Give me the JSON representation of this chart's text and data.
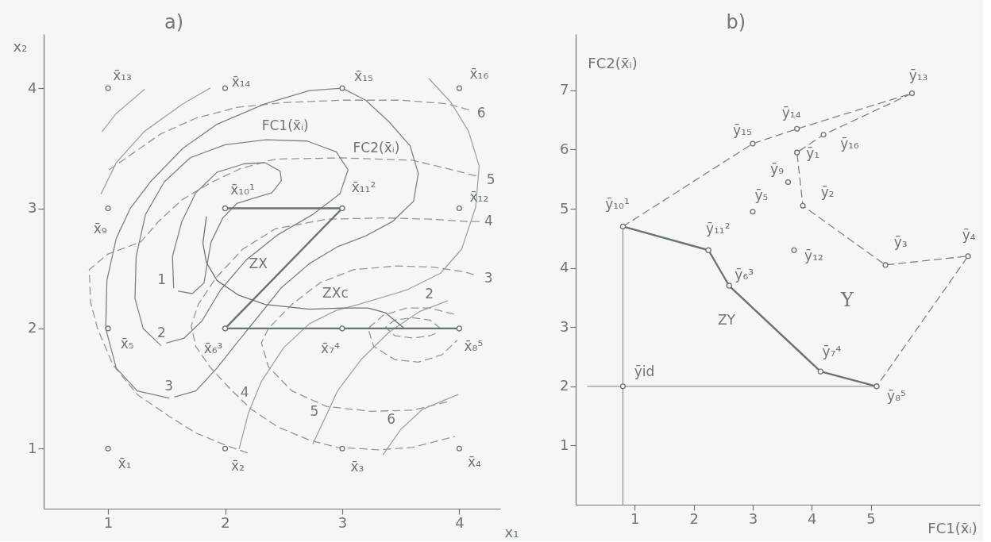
{
  "chart_data": [
    {
      "type": "line",
      "title": "a)",
      "xlabel": "x₁",
      "ylabel": "x₂",
      "xlim": [
        0.45,
        4.35
      ],
      "ylim": [
        0.5,
        4.45
      ],
      "xticks": [
        1,
        2,
        3,
        4
      ],
      "yticks": [
        1,
        2,
        3,
        4
      ],
      "series": [
        {
          "line_style": "dashed",
          "marker": "none",
          "color": "#8f9993",
          "x": [
            3.95,
            3.75,
            3.55,
            3.35,
            3.22,
            3.27,
            3.45,
            3.65,
            3.85,
            3.98
          ],
          "values": [
            2.12,
            2.17,
            2.17,
            2.11,
            2.0,
            1.85,
            1.74,
            1.72,
            1.78,
            1.9
          ]
        },
        {
          "line_style": "dashed",
          "marker": "none",
          "color": "#8f9993",
          "x": [
            3.84,
            3.75,
            3.6,
            3.45,
            3.37,
            3.45,
            3.6,
            3.75,
            3.83
          ],
          "values": [
            2.0,
            2.07,
            2.09,
            2.07,
            2.01,
            1.94,
            1.92,
            1.94,
            1.97
          ]
        },
        {
          "line_style": "dashed",
          "marker": "none",
          "color": "#8f9993",
          "x": [
            4.12,
            4.05,
            3.78,
            3.46,
            3.1,
            2.81,
            2.57,
            2.37,
            2.31,
            2.37,
            2.57,
            2.87,
            3.25,
            3.6,
            3.9
          ],
          "values": [
            2.45,
            2.47,
            2.51,
            2.52,
            2.49,
            2.38,
            2.2,
            2.0,
            1.88,
            1.68,
            1.48,
            1.35,
            1.31,
            1.32,
            1.39
          ]
        },
        {
          "line_style": "dashed",
          "marker": "none",
          "color": "#8f9993",
          "x": [
            4.17,
            4.08,
            3.75,
            3.37,
            2.87,
            2.43,
            2.15,
            1.92,
            1.77,
            1.71,
            1.75,
            1.87,
            2.04,
            2.22,
            2.45,
            2.72,
            2.96,
            3.31,
            3.6,
            3.96
          ],
          "values": [
            2.89,
            2.89,
            2.91,
            2.92,
            2.91,
            2.83,
            2.66,
            2.42,
            2.2,
            2.02,
            1.85,
            1.68,
            1.5,
            1.33,
            1.18,
            1.07,
            1.01,
            0.99,
            1.01,
            1.1
          ]
        },
        {
          "line_style": "dashed",
          "marker": "none",
          "color": "#8f9993",
          "x": [
            4.14,
            3.9,
            3.6,
            3.0,
            2.43,
            2.13,
            1.87,
            1.63,
            1.43,
            1.28,
            1.0,
            0.84,
            0.85,
            0.91,
            1.04,
            1.25,
            1.52,
            1.75,
            2.0,
            2.2
          ],
          "values": [
            3.27,
            3.33,
            3.4,
            3.42,
            3.41,
            3.33,
            3.21,
            3.07,
            2.89,
            2.72,
            2.62,
            2.49,
            2.22,
            2.0,
            1.7,
            1.45,
            1.27,
            1.13,
            1.03,
            0.96
          ]
        },
        {
          "line_style": "dashed",
          "marker": "none",
          "color": "#8f9993",
          "x": [
            4.08,
            3.9,
            3.5,
            3.0,
            2.5,
            2.1,
            1.75,
            1.45,
            1.2,
            0.98
          ],
          "values": [
            3.82,
            3.87,
            3.9,
            3.9,
            3.88,
            3.84,
            3.75,
            3.62,
            3.45,
            3.3
          ]
        },
        {
          "line_style": "solid",
          "marker": "none",
          "color": "#7b867f",
          "x": [
            1.56,
            1.55,
            1.63,
            1.75,
            1.93,
            2.16,
            2.34,
            2.47,
            2.48,
            2.4,
            2.23,
            2.1,
            1.98,
            1.88,
            1.84,
            1.82,
            1.72,
            1.6
          ],
          "values": [
            2.34,
            2.6,
            2.89,
            3.13,
            3.3,
            3.37,
            3.38,
            3.31,
            3.23,
            3.13,
            3.08,
            3.04,
            2.92,
            2.72,
            2.5,
            2.38,
            2.29,
            2.31
          ]
        },
        {
          "line_style": "solid",
          "marker": "none",
          "color": "#7b867f",
          "x": [
            1.45,
            1.3,
            1.23,
            1.24,
            1.32,
            1.48,
            1.7,
            2.0,
            2.35,
            2.7,
            2.95,
            3.05,
            2.98,
            2.75,
            2.45,
            2.18,
            1.96,
            1.8,
            1.65,
            1.5
          ],
          "values": [
            1.86,
            2.0,
            2.25,
            2.6,
            2.95,
            3.22,
            3.42,
            3.53,
            3.57,
            3.56,
            3.47,
            3.32,
            3.12,
            2.95,
            2.78,
            2.57,
            2.32,
            2.06,
            1.92,
            1.88
          ]
        },
        {
          "line_style": "solid",
          "marker": "none",
          "color": "#7b867f",
          "x": [
            1.52,
            1.25,
            1.07,
            0.98,
            0.99,
            1.07,
            1.19,
            1.37,
            1.64,
            1.93,
            2.34,
            2.72,
            3.0,
            3.2,
            3.4,
            3.58,
            3.65,
            3.61,
            3.43,
            3.2,
            2.96,
            2.72,
            2.48,
            2.3,
            2.1,
            1.93,
            1.75,
            1.57
          ],
          "values": [
            1.42,
            1.48,
            1.67,
            2.0,
            2.4,
            2.75,
            3.0,
            3.23,
            3.5,
            3.7,
            3.87,
            3.98,
            4.0,
            3.9,
            3.72,
            3.52,
            3.29,
            3.06,
            2.89,
            2.77,
            2.68,
            2.54,
            2.34,
            2.12,
            1.88,
            1.67,
            1.48,
            1.43
          ]
        },
        {
          "line_style": "solid",
          "marker": "none",
          "color": "#9ca59f",
          "x": [
            2.12,
            2.2,
            2.31,
            2.5,
            2.72,
            2.95,
            3.14,
            3.55,
            3.84,
            4.02,
            4.14,
            4.17,
            4.08,
            3.93,
            3.74
          ],
          "values": [
            1.0,
            1.3,
            1.56,
            1.84,
            2.04,
            2.15,
            2.2,
            2.32,
            2.46,
            2.66,
            3.01,
            3.35,
            3.64,
            3.88,
            4.08
          ]
        },
        {
          "line_style": "solid",
          "marker": "none",
          "color": "#9ca59f",
          "x": [
            2.75,
            2.87,
            2.96,
            3.16,
            3.4,
            3.66,
            3.9
          ],
          "values": [
            1.04,
            1.29,
            1.48,
            1.74,
            1.97,
            2.14,
            2.23
          ]
        },
        {
          "line_style": "solid",
          "marker": "none",
          "color": "#9ca59f",
          "x": [
            3.35,
            3.5,
            3.69,
            3.99
          ],
          "values": [
            0.95,
            1.16,
            1.33,
            1.45
          ]
        },
        {
          "line_style": "solid",
          "marker": "none",
          "color": "#9ca59f",
          "x": [
            0.95,
            1.07,
            1.31
          ],
          "values": [
            3.64,
            3.79,
            3.99
          ]
        },
        {
          "line_style": "solid",
          "marker": "none",
          "color": "#9ca59f",
          "x": [
            0.94,
            1.07,
            1.31,
            1.64,
            1.87
          ],
          "values": [
            3.12,
            3.38,
            3.64,
            3.87,
            4.0
          ]
        },
        {
          "line_style": "solid",
          "marker": "none",
          "color": "#6a756d",
          "x": [
            1.84,
            1.81,
            1.84,
            1.93,
            2.11,
            2.34,
            2.72,
            3.01,
            3.22,
            3.37,
            3.52
          ],
          "values": [
            2.93,
            2.71,
            2.55,
            2.4,
            2.28,
            2.2,
            2.16,
            2.17,
            2.17,
            2.13,
            2.01
          ]
        },
        {
          "line_style": "solid",
          "marker": "circle",
          "color": "#6a756d",
          "x": [
            2,
            3,
            2,
            3,
            4
          ],
          "values": [
            3,
            3,
            2,
            2,
            2
          ]
        },
        {
          "type": "scatter",
          "marker": "circle",
          "color": "#6a756d",
          "x": [
            1,
            2,
            3,
            4,
            1,
            1,
            4,
            1,
            2,
            3,
            4
          ],
          "values": [
            1,
            1,
            1,
            1,
            2,
            3,
            3,
            4,
            4,
            4,
            4
          ]
        }
      ],
      "annotations": [
        {
          "text": "x̄₁",
          "x": 1,
          "y": 1
        },
        {
          "text": "x̄₂",
          "x": 2,
          "y": 1
        },
        {
          "text": "x̄₃",
          "x": 3,
          "y": 1
        },
        {
          "text": "x̄₄",
          "x": 4,
          "y": 1
        },
        {
          "text": "x̄₅",
          "x": 1,
          "y": 2
        },
        {
          "text": "x̄₆³",
          "x": 2,
          "y": 2
        },
        {
          "text": "x̄₇⁴",
          "x": 3,
          "y": 2
        },
        {
          "text": "x̄₈⁵",
          "x": 4,
          "y": 2
        },
        {
          "text": "x̄₉",
          "x": 1,
          "y": 3
        },
        {
          "text": "x̄₁₀¹",
          "x": 2,
          "y": 3
        },
        {
          "text": "x̄₁₁²",
          "x": 3,
          "y": 3
        },
        {
          "text": "x̄₁₂",
          "x": 4,
          "y": 3
        },
        {
          "text": "x̄₁₃",
          "x": 1,
          "y": 4
        },
        {
          "text": "x̄₁₄",
          "x": 2,
          "y": 4
        },
        {
          "text": "x̄₁₅",
          "x": 3,
          "y": 4
        },
        {
          "text": "x̄₁₆",
          "x": 4,
          "y": 4
        },
        {
          "text": "FC1(x̄ᵢ)",
          "x": 2.35,
          "y": 3.57
        },
        {
          "text": "FC2(x̄ᵢ)",
          "x": 3.0,
          "y": 3.42
        },
        {
          "text": "ZX",
          "x": 2.5,
          "y": 2.5
        },
        {
          "text": "ZXc",
          "x": 3.01,
          "y": 2.17
        },
        {
          "text": "1",
          "x": 1.56,
          "y": 2.34
        },
        {
          "text": "2",
          "x": 1.45,
          "y": 1.86
        },
        {
          "text": "3",
          "x": 1.52,
          "y": 1.42
        },
        {
          "text": "4",
          "x": 2.31,
          "y": 1.56
        },
        {
          "text": "5",
          "x": 2.87,
          "y": 1.29
        },
        {
          "text": "6",
          "x": 3.5,
          "y": 1.16
        },
        {
          "text": "2",
          "x": 3.75,
          "y": 2.17
        },
        {
          "text": "3",
          "x": 4.12,
          "y": 2.45
        },
        {
          "text": "4",
          "x": 4.17,
          "y": 2.89
        },
        {
          "text": "5",
          "x": 4.14,
          "y": 3.27
        },
        {
          "text": "6",
          "x": 4.08,
          "y": 3.82
        }
      ]
    },
    {
      "type": "scatter",
      "title": "b)",
      "xlabel": "FC1(x̄ᵢ)",
      "ylabel": "FC2(x̄ᵢ)",
      "xlim": [
        0,
        6.85
      ],
      "ylim": [
        0,
        7.95
      ],
      "xticks": [
        1,
        2,
        3,
        4,
        5
      ],
      "yticks": [
        1,
        2,
        3,
        4,
        5,
        6,
        7
      ],
      "series": [
        {
          "type": "line",
          "line_style": "solid",
          "marker": "none",
          "color": "#8f9993",
          "x": [
            0.2,
            5.1
          ],
          "values": [
            2.0,
            2.0
          ]
        },
        {
          "type": "line",
          "line_style": "solid",
          "marker": "none",
          "color": "#8f9993",
          "x": [
            0.8,
            0.8
          ],
          "values": [
            0,
            4.7
          ]
        },
        {
          "type": "line",
          "line_style": "dashed",
          "marker": "none",
          "color": "#7b867f",
          "x": [
            0.8,
            3.0,
            3.75,
            5.7,
            4.2,
            3.75,
            3.85,
            5.25,
            6.65,
            5.1
          ],
          "values": [
            4.7,
            6.1,
            6.35,
            6.95,
            6.25,
            5.95,
            5.05,
            4.05,
            4.2,
            2.0
          ]
        },
        {
          "type": "line",
          "line_style": "solid",
          "marker": "circle",
          "color": "#6a756d",
          "x": [
            0.8,
            2.25,
            2.6,
            4.15,
            5.1
          ],
          "values": [
            4.7,
            4.3,
            3.7,
            2.25,
            2.0
          ]
        },
        {
          "marker": "circle",
          "color": "#6a756d",
          "x": [
            3.0,
            3.75,
            5.7,
            4.2,
            3.75,
            3.85,
            5.25,
            6.65,
            3.0,
            3.6,
            3.7,
            0.8
          ],
          "values": [
            6.1,
            6.35,
            6.95,
            6.25,
            5.95,
            5.05,
            4.05,
            4.2,
            4.95,
            5.45,
            4.3,
            2.0
          ]
        }
      ],
      "annotations": [
        {
          "text": "ȳ₁",
          "x": 3.75,
          "y": 5.95
        },
        {
          "text": "ȳ₂",
          "x": 3.85,
          "y": 5.05
        },
        {
          "text": "ȳ₃",
          "x": 5.25,
          "y": 4.05
        },
        {
          "text": "ȳ₄",
          "x": 6.65,
          "y": 4.2
        },
        {
          "text": "ȳ₅",
          "x": 3.0,
          "y": 4.95
        },
        {
          "text": "ȳ₆³",
          "x": 2.6,
          "y": 3.7
        },
        {
          "text": "ȳ₇⁴",
          "x": 4.15,
          "y": 2.25
        },
        {
          "text": "ȳ₈⁵",
          "x": 5.1,
          "y": 2.0
        },
        {
          "text": "ȳ₉",
          "x": 3.6,
          "y": 5.45
        },
        {
          "text": "ȳ₁₀¹",
          "x": 0.8,
          "y": 4.7
        },
        {
          "text": "ȳ₁₁²",
          "x": 2.25,
          "y": 4.3
        },
        {
          "text": "ȳ₁₂",
          "x": 3.7,
          "y": 4.3
        },
        {
          "text": "ȳ₁₃",
          "x": 5.7,
          "y": 6.95
        },
        {
          "text": "ȳ₁₄",
          "x": 3.75,
          "y": 6.35
        },
        {
          "text": "ȳ₁₅",
          "x": 3.0,
          "y": 6.1
        },
        {
          "text": "ȳ₁₆",
          "x": 4.2,
          "y": 6.25
        },
        {
          "text": "ȳid",
          "x": 0.8,
          "y": 2.0
        },
        {
          "text": "ZY",
          "x": 3.0,
          "y": 3.33
        },
        "Y"
      ]
    }
  ]
}
